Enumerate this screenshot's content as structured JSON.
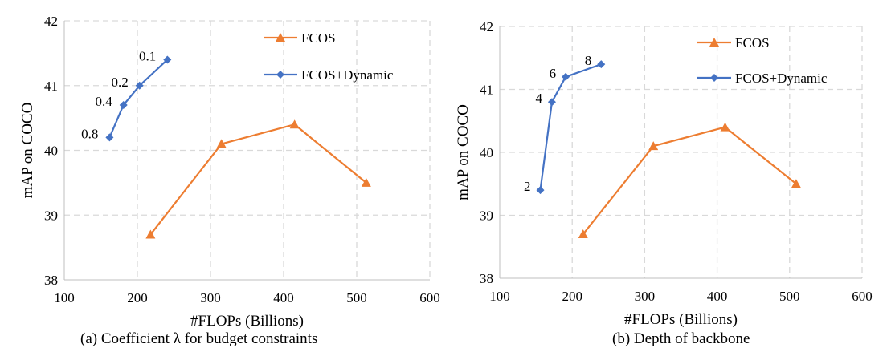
{
  "colors": {
    "fcos": "#ED7D31",
    "dynamic": "#4472C4",
    "grid": "#D9D9D9",
    "axis": "#000000"
  },
  "chart_data": [
    {
      "type": "line",
      "xlabel": "#FLOPs (Billions)",
      "ylabel": "mAP on COCO",
      "xlim": [
        100,
        600
      ],
      "ylim": [
        38,
        42
      ],
      "x_ticks": [
        "100",
        "200",
        "300",
        "400",
        "500",
        "600"
      ],
      "y_ticks": [
        "38",
        "39",
        "40",
        "41",
        "42"
      ],
      "grid": true,
      "legend_position": "top-right",
      "caption": "(a) Coefficient λ for budget constraints",
      "series": [
        {
          "name": "FCOS",
          "marker": "triangle",
          "color": "#ED7D31",
          "x": [
            218,
            315,
            415,
            513
          ],
          "y": [
            38.7,
            40.1,
            40.4,
            39.5
          ],
          "labels": []
        },
        {
          "name": "FCOS+Dynamic",
          "marker": "diamond",
          "color": "#4472C4",
          "x": [
            162,
            181,
            203,
            241
          ],
          "y": [
            40.2,
            40.7,
            41.0,
            41.4
          ],
          "labels": [
            "0.8",
            "0.4",
            "0.2",
            "0.1"
          ]
        }
      ]
    },
    {
      "type": "line",
      "xlabel": "#FLOPs (Billions)",
      "ylabel": "mAP on COCO",
      "xlim": [
        100,
        600
      ],
      "ylim": [
        38,
        42
      ],
      "x_ticks": [
        "100",
        "200",
        "300",
        "400",
        "500",
        "600"
      ],
      "y_ticks": [
        "38",
        "39",
        "40",
        "41",
        "42"
      ],
      "grid": true,
      "legend_position": "top-right",
      "caption": "(b) Depth of backbone",
      "series": [
        {
          "name": "FCOS",
          "marker": "triangle",
          "color": "#ED7D31",
          "x": [
            215,
            312,
            411,
            509
          ],
          "y": [
            38.7,
            40.1,
            40.4,
            39.5
          ],
          "labels": []
        },
        {
          "name": "FCOS+Dynamic",
          "marker": "diamond",
          "color": "#4472C4",
          "x": [
            156,
            172,
            191,
            240
          ],
          "y": [
            39.4,
            40.8,
            41.2,
            41.4
          ],
          "labels": [
            "2",
            "4",
            "6",
            "8"
          ]
        }
      ]
    }
  ]
}
